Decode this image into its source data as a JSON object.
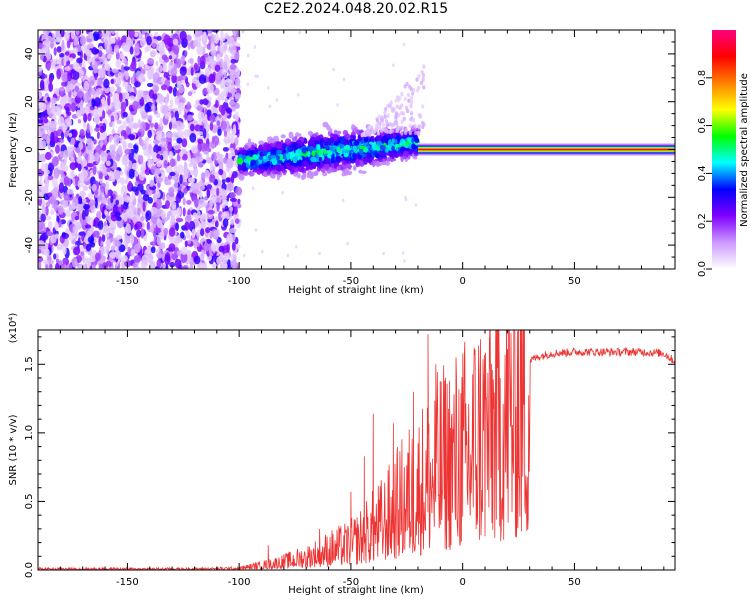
{
  "figure": {
    "title": "C2E2.2024.048.20.02.R15"
  },
  "chart_data": [
    {
      "type": "heatmap",
      "xlabel": "Height of straight line (km)",
      "ylabel": "Frequency (Hz)",
      "xlim": [
        -190,
        95
      ],
      "ylim": [
        -50,
        50
      ],
      "x_ticks": [
        -150,
        -100,
        -50,
        0,
        50
      ],
      "y_ticks": [
        -40,
        -20,
        0,
        20,
        40
      ],
      "colorbar": {
        "label": "Normalized spectral amplitude",
        "range": [
          0,
          1
        ],
        "ticks": [
          "0.0",
          "0.2",
          "0.4",
          "0.6",
          "0.8"
        ],
        "colormap": [
          "#ffffff",
          "#cc99ff",
          "#8000ff",
          "#0000ff",
          "#00ffff",
          "#00ff00",
          "#ffff00",
          "#ff8000",
          "#ff0000",
          "#ff0080"
        ]
      },
      "regions": [
        {
          "name": "noise",
          "x": [
            -190,
            -100
          ],
          "freq": [
            -50,
            50
          ],
          "amplitude": [
            0.05,
            0.2
          ]
        },
        {
          "name": "transition",
          "x": [
            -100,
            -20
          ],
          "freq_center": [
            -5,
            3
          ],
          "freq_spread": [
            8,
            12
          ],
          "amplitude": [
            0.2,
            0.5
          ]
        },
        {
          "name": "sharp_line",
          "x": [
            -20,
            95
          ],
          "freq": 0,
          "amplitude": 0.9
        }
      ]
    },
    {
      "type": "line",
      "xlabel": "Height of straight line (km)",
      "ylabel": "SNR (10 * v/v)",
      "y_multiplier": "(x10⁴)",
      "xlim": [
        -190,
        95
      ],
      "ylim": [
        0,
        1.75
      ],
      "x_ticks": [
        -150,
        -100,
        -50,
        0,
        50
      ],
      "y_ticks": [
        "0.0",
        "0.5",
        "1.0",
        "1.5"
      ],
      "color": "#ee3333",
      "envelope_x": [
        -190,
        -120,
        -100,
        -90,
        -80,
        -70,
        -60,
        -50,
        -45,
        -40,
        -35,
        -30,
        -25,
        -20,
        -15,
        -10,
        -5,
        0,
        5,
        10,
        15,
        20,
        25,
        30,
        35,
        40,
        50,
        60,
        70,
        80,
        90,
        95
      ],
      "envelope_y": [
        0.01,
        0.01,
        0.015,
        0.04,
        0.07,
        0.11,
        0.17,
        0.22,
        0.28,
        0.35,
        0.42,
        0.52,
        0.62,
        0.7,
        0.8,
        0.88,
        0.95,
        1.0,
        1.1,
        1.22,
        1.3,
        1.4,
        1.48,
        1.53,
        1.56,
        1.58,
        1.59,
        1.59,
        1.59,
        1.59,
        1.58,
        1.52
      ],
      "spikes": [
        {
          "x": -87.0,
          "y": 0.18
        },
        {
          "x": -64.0,
          "y": 0.3
        },
        {
          "x": -50.0,
          "y": 0.57
        },
        {
          "x": -44.0,
          "y": 0.83
        },
        {
          "x": -40.0,
          "y": 1.14
        },
        {
          "x": -31.0,
          "y": 1.07
        },
        {
          "x": -22.0,
          "y": 1.3
        },
        {
          "x": -15.5,
          "y": 1.72
        },
        {
          "x": -12.0,
          "y": 1.5
        },
        {
          "x": -8.0,
          "y": 1.38
        },
        {
          "x": 5.0,
          "y": 1.42
        },
        {
          "x": 12.0,
          "y": 1.46
        }
      ],
      "dips": [
        {
          "x": -13.5,
          "y": 0.6
        },
        {
          "x": 0.0,
          "y": 0.39
        },
        {
          "x": 6.0,
          "y": 0.75
        }
      ]
    }
  ]
}
